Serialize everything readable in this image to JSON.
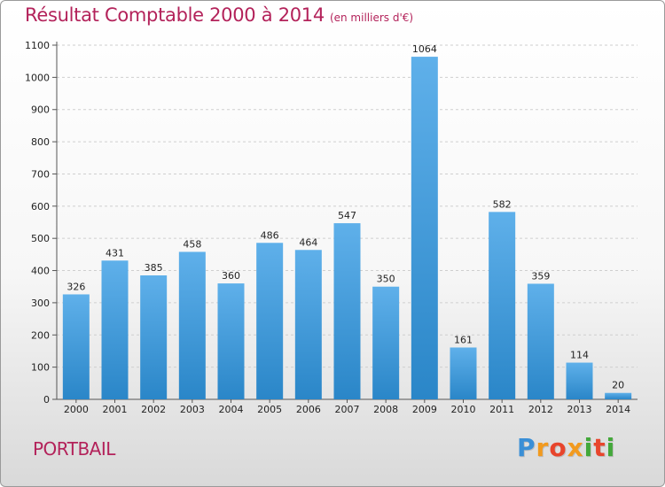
{
  "chart_data": {
    "type": "bar",
    "title": "Résultat Comptable 2000 à 2014",
    "subtitle": "(en milliers d'€)",
    "categories": [
      "2000",
      "2001",
      "2002",
      "2003",
      "2004",
      "2005",
      "2006",
      "2007",
      "2008",
      "2009",
      "2010",
      "2011",
      "2012",
      "2013",
      "2014"
    ],
    "values": [
      326,
      431,
      385,
      458,
      360,
      486,
      464,
      547,
      350,
      1064,
      161,
      582,
      359,
      114,
      20
    ],
    "data_labels": [
      "326",
      "431",
      "385",
      "458",
      "360",
      "486",
      "464",
      "547",
      "350",
      "1064",
      "161",
      "582",
      "359",
      "114",
      "20"
    ],
    "ylim": [
      0,
      1100
    ],
    "yticks": [
      0,
      100,
      200,
      300,
      400,
      500,
      600,
      700,
      800,
      900,
      1000,
      1100
    ],
    "ytick_labels": [
      "0",
      "100",
      "200",
      "300",
      "400",
      "500",
      "600",
      "700",
      "800",
      "900",
      "1000",
      "1100"
    ],
    "grid": true,
    "colors": {
      "bar_light": "#5fb0ea",
      "bar_dark": "#2a86c8",
      "title": "#b3225a",
      "grid": "#cfcfcf"
    }
  },
  "footer": {
    "commune": "PORTBAIL",
    "brand_letters": [
      "P",
      "r",
      "o",
      "x",
      "i",
      "t",
      "i"
    ],
    "brand_colors": [
      "#3a8fd6",
      "#f29a1e",
      "#e8452c",
      "#f29a1e",
      "#43a83a",
      "#e8452c",
      "#43a83a"
    ]
  }
}
